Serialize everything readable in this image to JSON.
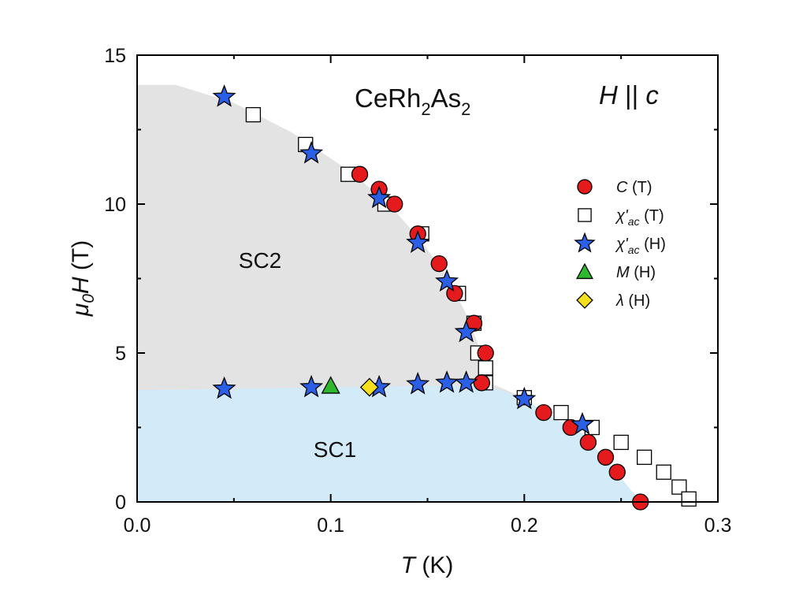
{
  "chart_data": {
    "type": "scatter",
    "title": {
      "pre": "CeRh",
      "sub1": "2",
      "mid": "As",
      "sub2": "2"
    },
    "field_note": {
      "h": "H",
      "sep": " || ",
      "c": "c"
    },
    "xlabel": {
      "t": "T",
      "unit": " (K)"
    },
    "ylabel": {
      "mu": "μ",
      "sub": "0",
      "h": "H",
      "unit": " (T)"
    },
    "xlim": [
      0,
      0.3
    ],
    "ylim": [
      0,
      15
    ],
    "xticks": [
      "0.0",
      "0.1",
      "0.2",
      "0.3"
    ],
    "yticks": [
      "0",
      "5",
      "10",
      "15"
    ],
    "regions": [
      {
        "name": "SC2",
        "color": "#e3e3e3"
      },
      {
        "name": "SC1",
        "color": "#d3eaf9"
      }
    ],
    "sc2_boundary": [
      [
        0,
        14.0
      ],
      [
        0.02,
        14.0
      ],
      [
        0.05,
        13.4
      ],
      [
        0.08,
        12.4
      ],
      [
        0.11,
        11.1
      ],
      [
        0.13,
        10.0
      ],
      [
        0.145,
        8.9
      ],
      [
        0.16,
        7.6
      ],
      [
        0.17,
        6.3
      ],
      [
        0.178,
        5.0
      ],
      [
        0.182,
        4.0
      ],
      [
        0.2,
        3.5
      ],
      [
        0.21,
        3.0
      ],
      [
        0.23,
        2.3
      ],
      [
        0.245,
        1.2
      ],
      [
        0.255,
        0.4
      ],
      [
        0.26,
        0
      ]
    ],
    "sc1_boundary": [
      [
        0,
        3.75
      ],
      [
        0.05,
        3.8
      ],
      [
        0.1,
        3.85
      ],
      [
        0.15,
        3.9
      ],
      [
        0.18,
        3.9
      ],
      [
        0.2,
        3.5
      ],
      [
        0.21,
        3.0
      ],
      [
        0.23,
        2.3
      ],
      [
        0.245,
        1.2
      ],
      [
        0.255,
        0.4
      ],
      [
        0.26,
        0
      ]
    ],
    "series": [
      {
        "name": "C (T)",
        "label": {
          "main": "C",
          "arg": " (T)"
        },
        "marker": "circle",
        "color": "#e41a1c",
        "points": [
          [
            0.115,
            11.0
          ],
          [
            0.125,
            10.5
          ],
          [
            0.133,
            10.0
          ],
          [
            0.145,
            9.0
          ],
          [
            0.156,
            8.0
          ],
          [
            0.164,
            7.0
          ],
          [
            0.174,
            6.0
          ],
          [
            0.18,
            5.0
          ],
          [
            0.178,
            4.0
          ],
          [
            0.21,
            3.0
          ],
          [
            0.224,
            2.5
          ],
          [
            0.233,
            2.0
          ],
          [
            0.242,
            1.5
          ],
          [
            0.248,
            1.0
          ],
          [
            0.26,
            0.0
          ]
        ]
      },
      {
        "name": "χ'ac (T)",
        "label": {
          "main": "χ'",
          "sub": "ac",
          "arg": " (T)"
        },
        "marker": "square",
        "color": "#ffffff",
        "points": [
          [
            0.06,
            13.0
          ],
          [
            0.087,
            12.0
          ],
          [
            0.109,
            11.0
          ],
          [
            0.128,
            10.0
          ],
          [
            0.147,
            9.0
          ],
          [
            0.166,
            7.0
          ],
          [
            0.174,
            6.0
          ],
          [
            0.176,
            5.0
          ],
          [
            0.18,
            4.5
          ],
          [
            0.18,
            4.0
          ],
          [
            0.2,
            3.5
          ],
          [
            0.219,
            3.0
          ],
          [
            0.235,
            2.5
          ],
          [
            0.25,
            2.0
          ],
          [
            0.262,
            1.5
          ],
          [
            0.272,
            1.0
          ],
          [
            0.28,
            0.5
          ],
          [
            0.285,
            0.1
          ]
        ]
      },
      {
        "name": "χ'ac (H)",
        "label": {
          "main": "χ'",
          "sub": "ac",
          "arg": " (H)"
        },
        "marker": "star",
        "color": "#2b5fe6",
        "points": [
          [
            0.045,
            13.6
          ],
          [
            0.09,
            11.7
          ],
          [
            0.125,
            10.2
          ],
          [
            0.145,
            8.7
          ],
          [
            0.16,
            7.4
          ],
          [
            0.17,
            5.7
          ],
          [
            0.045,
            3.8
          ],
          [
            0.09,
            3.85
          ],
          [
            0.125,
            3.85
          ],
          [
            0.145,
            3.95
          ],
          [
            0.16,
            4.0
          ],
          [
            0.17,
            4.0
          ],
          [
            0.2,
            3.45
          ],
          [
            0.23,
            2.6
          ]
        ]
      },
      {
        "name": "M (H)",
        "label": {
          "main": "M",
          "arg": " (H)"
        },
        "marker": "triangle",
        "color": "#2eb82e",
        "points": [
          [
            0.1,
            3.9
          ]
        ]
      },
      {
        "name": "λ (H)",
        "label": {
          "main": "λ",
          "arg": " (H)"
        },
        "marker": "diamond",
        "color": "#f5e020",
        "points": [
          [
            0.12,
            3.85
          ]
        ]
      }
    ],
    "legend_position": "right"
  }
}
